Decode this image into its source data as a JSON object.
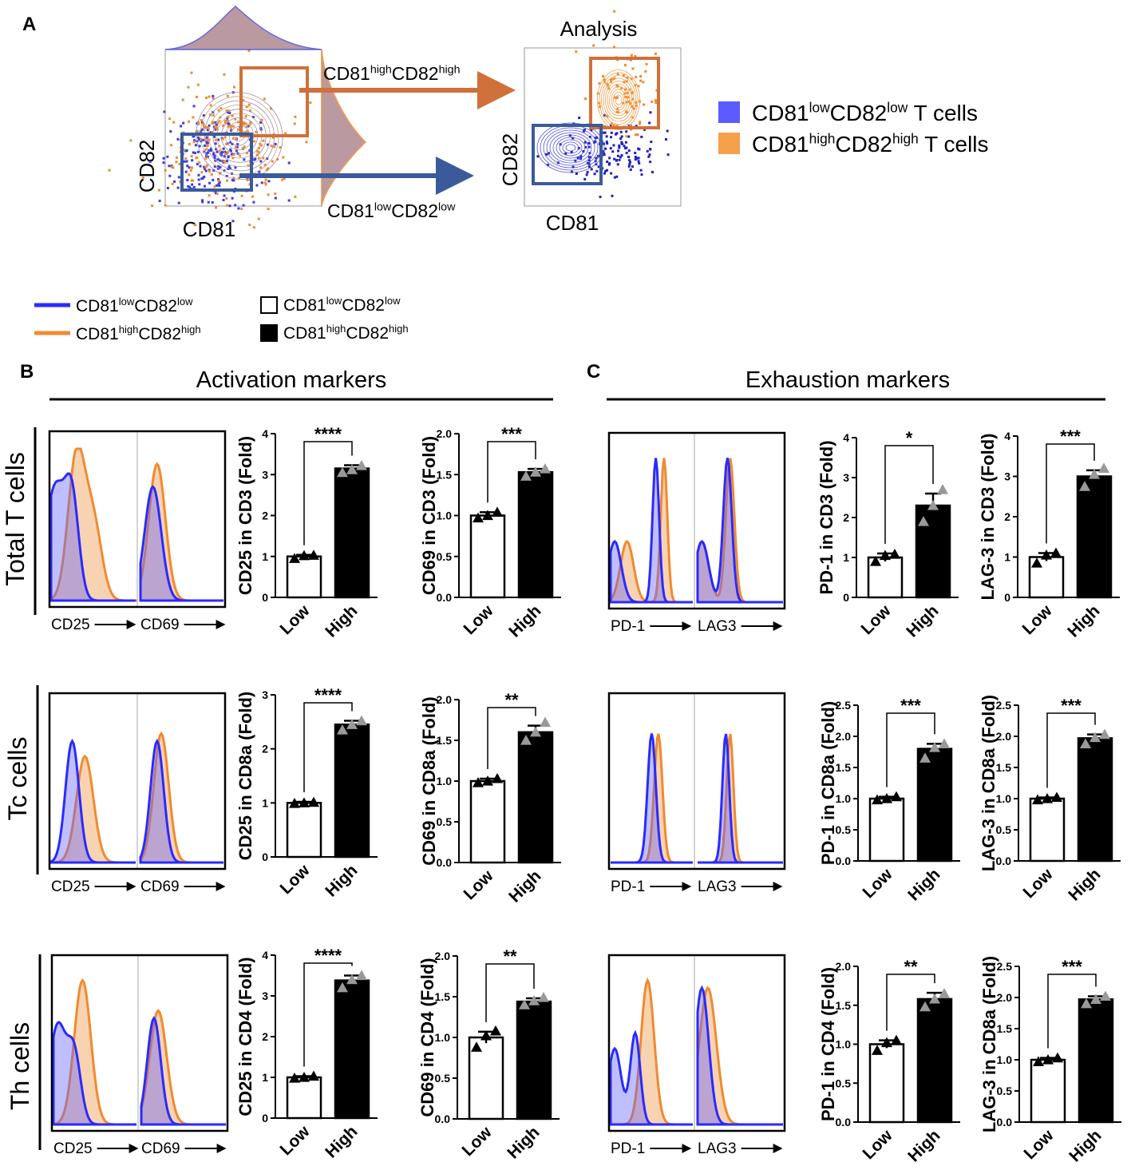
{
  "panels": {
    "A": "A",
    "B": "B",
    "C": "C"
  },
  "gating": {
    "y_axis": "CD82",
    "x_axis": "CD81",
    "gate_high": [
      "CD81",
      "high",
      "CD82",
      "high"
    ],
    "gate_low": [
      "CD81",
      "low",
      "CD82",
      "low"
    ],
    "analysis_title": "Analysis",
    "analysis_y": "CD82",
    "analysis_x": "CD81"
  },
  "legend_top": [
    {
      "label": [
        "CD81",
        "low",
        "CD82",
        "low",
        " T cells"
      ],
      "color": "#5b5bff"
    },
    {
      "label": [
        "CD81",
        "high",
        "CD82",
        "high",
        " T cells"
      ],
      "color": "#f5a04a"
    }
  ],
  "legend_lines": [
    {
      "label": [
        "CD81",
        "low",
        "CD82",
        "low"
      ],
      "color": "#2a2aff"
    },
    {
      "label": [
        "CD81",
        "high",
        "CD82",
        "high"
      ],
      "color": "#f08a30"
    }
  ],
  "legend_bars": [
    {
      "label": [
        "CD81",
        "low",
        "CD82",
        "low"
      ],
      "color": "#ffffff"
    },
    {
      "label": [
        "CD81",
        "high",
        "CD82",
        "high"
      ],
      "color": "#000000"
    }
  ],
  "sections": {
    "activation": "Activation markers",
    "exhaustion": "Exhaustion markers"
  },
  "rows": [
    "Total T cells",
    "Tc cells",
    "Th cells"
  ],
  "histograms": [
    {
      "labels": [
        "CD25",
        "CD69"
      ]
    },
    {
      "labels": [
        "PD-1",
        "LAG3"
      ]
    },
    {
      "labels": [
        "CD25",
        "CD69"
      ]
    },
    {
      "labels": [
        "PD-1",
        "LAG3"
      ]
    },
    {
      "labels": [
        "CD25",
        "CD69"
      ]
    },
    {
      "labels": [
        "PD-1",
        "LAG3"
      ]
    }
  ],
  "chart_data": [
    {
      "type": "bar",
      "ylabel": "CD25 in CD3 (Fold)",
      "categories": [
        "Low",
        "High"
      ],
      "values": [
        1.0,
        3.15
      ],
      "errors": [
        0.04,
        0.08
      ],
      "points": [
        [
          0.95,
          1.02,
          1.03
        ],
        [
          3.05,
          3.12,
          3.22
        ]
      ],
      "significance": "****",
      "ylim": [
        0,
        4
      ],
      "yticks": [
        0,
        1,
        2,
        3,
        4
      ],
      "colors": [
        "#ffffff",
        "#000000"
      ],
      "point_colors": [
        "#000000",
        "#999999"
      ]
    },
    {
      "type": "bar",
      "ylabel": "CD69 in CD3 (Fold)",
      "categories": [
        "Low",
        "High"
      ],
      "values": [
        1.0,
        1.53
      ],
      "errors": [
        0.04,
        0.04
      ],
      "points": [
        [
          0.97,
          1.0,
          1.04
        ],
        [
          1.48,
          1.53,
          1.57
        ]
      ],
      "significance": "***",
      "ylim": [
        0,
        2
      ],
      "yticks": [
        {
          "value": 0,
          "label": "0.0"
        },
        0.5,
        {
          "value": 1,
          "label": "1.0"
        },
        1.5,
        {
          "value": 2,
          "label": "2.0"
        }
      ],
      "colors": [
        "#ffffff",
        "#000000"
      ],
      "point_colors": [
        "#000000",
        "#999999"
      ]
    },
    {
      "type": "bar",
      "ylabel": "CD25 in CD8a (Fold)",
      "categories": [
        "Low",
        "High"
      ],
      "values": [
        1.0,
        2.45
      ],
      "errors": [
        0.02,
        0.07
      ],
      "points": [
        [
          0.99,
          1.0,
          1.01
        ],
        [
          2.35,
          2.45,
          2.52
        ]
      ],
      "significance": "****",
      "ylim": [
        0,
        3
      ],
      "yticks": [
        0,
        1,
        2,
        3
      ],
      "colors": [
        "#ffffff",
        "#000000"
      ],
      "point_colors": [
        "#000000",
        "#999999"
      ]
    },
    {
      "type": "bar",
      "ylabel": "CD69 in CD8a (Fold)",
      "categories": [
        "Low",
        "High"
      ],
      "values": [
        1.0,
        1.6
      ],
      "errors": [
        0.03,
        0.08
      ],
      "points": [
        [
          0.98,
          1.0,
          1.03
        ],
        [
          1.5,
          1.6,
          1.72
        ]
      ],
      "significance": "**",
      "ylim": [
        0,
        2
      ],
      "yticks": [
        {
          "value": 0,
          "label": "0.0"
        },
        0.5,
        {
          "value": 1,
          "label": "1.0"
        },
        1.5,
        {
          "value": 2,
          "label": "2.0"
        }
      ],
      "colors": [
        "#ffffff",
        "#000000"
      ],
      "point_colors": [
        "#000000",
        "#999999"
      ]
    },
    {
      "type": "bar",
      "ylabel": "CD25 in CD4 (Fold)",
      "categories": [
        "Low",
        "High"
      ],
      "values": [
        1.0,
        3.38
      ],
      "errors": [
        0.03,
        0.12
      ],
      "points": [
        [
          0.98,
          1.0,
          1.03
        ],
        [
          3.2,
          3.4,
          3.5
        ]
      ],
      "significance": "****",
      "ylim": [
        0,
        4
      ],
      "yticks": [
        0,
        1,
        2,
        3,
        4
      ],
      "colors": [
        "#ffffff",
        "#000000"
      ],
      "point_colors": [
        "#000000",
        "#999999"
      ]
    },
    {
      "type": "bar",
      "ylabel": "CD69 in CD4 (Fold)",
      "categories": [
        "Low",
        "High"
      ],
      "values": [
        1.0,
        1.44
      ],
      "errors": [
        0.07,
        0.04
      ],
      "points": [
        [
          0.88,
          1.02,
          1.08
        ],
        [
          1.4,
          1.45,
          1.49
        ]
      ],
      "significance": "**",
      "ylim": [
        0,
        2
      ],
      "yticks": [
        {
          "value": 0,
          "label": "0.0"
        },
        0.5,
        {
          "value": 1,
          "label": "1.0"
        },
        1.5,
        {
          "value": 2,
          "label": "2.0"
        }
      ],
      "colors": [
        "#ffffff",
        "#000000"
      ],
      "point_colors": [
        "#000000",
        "#999999"
      ]
    },
    {
      "type": "bar",
      "ylabel": "PD-1 in CD3 (Fold)",
      "categories": [
        "Low",
        "High"
      ],
      "values": [
        1.0,
        2.3
      ],
      "errors": [
        0.1,
        0.3
      ],
      "points": [
        [
          0.9,
          1.05,
          1.08
        ],
        [
          1.9,
          2.3,
          2.7
        ]
      ],
      "significance": "*",
      "ylim": [
        0,
        4
      ],
      "yticks": [
        0,
        1,
        2,
        3,
        4
      ],
      "colors": [
        "#ffffff",
        "#000000"
      ],
      "point_colors": [
        "#000000",
        "#999999"
      ]
    },
    {
      "type": "bar",
      "ylabel": "LAG-3 in CD3 (Fold)",
      "categories": [
        "Low",
        "High"
      ],
      "values": [
        1.0,
        3.0
      ],
      "errors": [
        0.1,
        0.15
      ],
      "points": [
        [
          0.85,
          1.05,
          1.1
        ],
        [
          2.75,
          3.05,
          3.2
        ]
      ],
      "significance": "***",
      "ylim": [
        0,
        4
      ],
      "yticks": [
        0,
        1,
        2,
        3,
        4
      ],
      "colors": [
        "#ffffff",
        "#000000"
      ],
      "point_colors": [
        "#000000",
        "#999999"
      ]
    },
    {
      "type": "bar",
      "ylabel": "PD-1 in CD8a (Fold)",
      "categories": [
        "Low",
        "High"
      ],
      "values": [
        1.0,
        1.8
      ],
      "errors": [
        0.03,
        0.08
      ],
      "points": [
        [
          0.98,
          1.0,
          1.03
        ],
        [
          1.65,
          1.82,
          1.88
        ]
      ],
      "significance": "***",
      "ylim": [
        0,
        2.5
      ],
      "yticks": [
        {
          "value": 0,
          "label": "0.0"
        },
        0.5,
        {
          "value": 1,
          "label": "1.0"
        },
        1.5,
        {
          "value": 2,
          "label": "2.0"
        },
        2.5
      ],
      "colors": [
        "#ffffff",
        "#000000"
      ],
      "point_colors": [
        "#000000",
        "#999999"
      ]
    },
    {
      "type": "bar",
      "ylabel": "LAG-3 in CD8a (Fold)",
      "categories": [
        "Low",
        "High"
      ],
      "values": [
        1.0,
        1.97
      ],
      "errors": [
        0.02,
        0.06
      ],
      "points": [
        [
          0.98,
          1.0,
          1.02
        ],
        [
          1.88,
          1.98,
          2.03
        ]
      ],
      "significance": "***",
      "ylim": [
        0,
        2.5
      ],
      "yticks": [
        {
          "value": 0,
          "label": "0.0"
        },
        0.5,
        {
          "value": 1,
          "label": "1.0"
        },
        1.5,
        {
          "value": 2,
          "label": "2.0"
        },
        2.5
      ],
      "colors": [
        "#ffffff",
        "#000000"
      ],
      "point_colors": [
        "#000000",
        "#999999"
      ]
    },
    {
      "type": "bar",
      "ylabel": "PD-1 in CD4 (Fold)",
      "categories": [
        "Low",
        "High"
      ],
      "values": [
        1.0,
        1.58
      ],
      "errors": [
        0.05,
        0.08
      ],
      "points": [
        [
          0.92,
          1.02,
          1.05
        ],
        [
          1.48,
          1.58,
          1.65
        ]
      ],
      "significance": "**",
      "ylim": [
        0,
        2
      ],
      "yticks": [
        {
          "value": 0,
          "label": "0.0"
        },
        0.5,
        {
          "value": 1,
          "label": "1.0"
        },
        1.5,
        {
          "value": 2,
          "label": "2.0"
        }
      ],
      "colors": [
        "#ffffff",
        "#000000"
      ],
      "point_colors": [
        "#000000",
        "#999999"
      ]
    },
    {
      "type": "bar",
      "ylabel": "LAG-3 in CD8a (Fold)",
      "categories": [
        "Low",
        "High"
      ],
      "values": [
        1.0,
        1.97
      ],
      "errors": [
        0.03,
        0.05
      ],
      "points": [
        [
          0.97,
          1.0,
          1.03
        ],
        [
          1.9,
          1.97,
          2.02
        ]
      ],
      "significance": "***",
      "ylim": [
        0,
        2.5
      ],
      "yticks": [
        {
          "value": 0,
          "label": "0.0"
        },
        0.5,
        {
          "value": 1,
          "label": "1.0"
        },
        1.5,
        {
          "value": 2,
          "label": "2.0"
        },
        2.5
      ],
      "colors": [
        "#ffffff",
        "#000000"
      ],
      "point_colors": [
        "#000000",
        "#999999"
      ]
    }
  ]
}
